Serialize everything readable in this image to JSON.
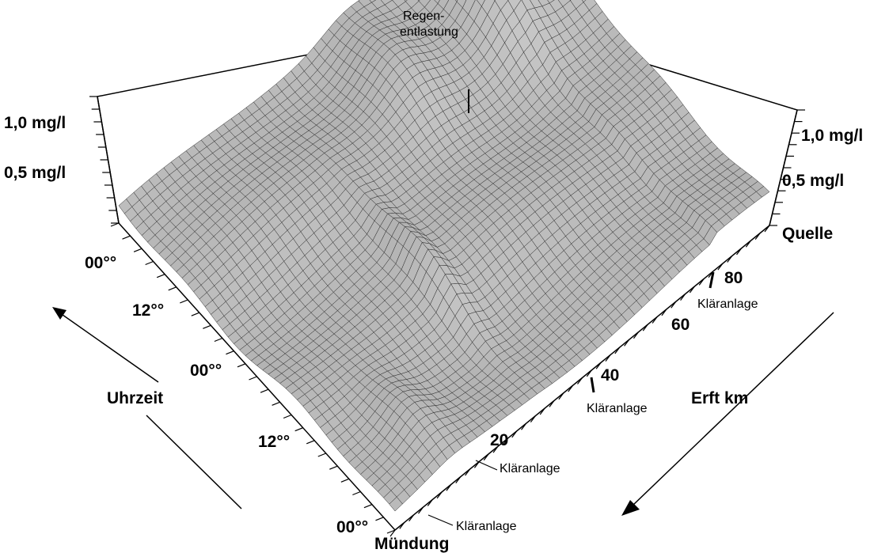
{
  "chart_data": {
    "type": "surface",
    "title": "",
    "z_axis": {
      "tick_labels": [
        "1,0 mg/l",
        "0,5 mg/l"
      ],
      "range": [
        0,
        1.0
      ]
    },
    "time_axis": {
      "label": "Uhrzeit",
      "tick_labels": [
        "00°°",
        "12°°",
        "00°°",
        "12°°",
        "00°°"
      ],
      "hours": [
        48,
        36,
        24,
        12,
        0
      ]
    },
    "km_axis": {
      "label": "Erft km",
      "start_label": "Mündung",
      "end_label": "Quelle",
      "tick_labels": [
        "20",
        "40",
        "60",
        "80"
      ],
      "ticks_km": [
        20,
        40,
        60,
        80
      ],
      "range": [
        0,
        100
      ]
    },
    "annotations": [
      {
        "text": "Kläranlage",
        "km": 7
      },
      {
        "text": "Kläranlage",
        "km": 14
      },
      {
        "text": "Kläranlage",
        "km": 37
      },
      {
        "text": "Kläranlage",
        "km": 82
      }
    ],
    "regen_annotation": {
      "line1": "Regen-",
      "line2": "entlastung"
    },
    "features": [
      {
        "description_free": true,
        "km": 82,
        "hour": 47,
        "height": 0.55,
        "width_km": 2.5,
        "width_h": 4
      },
      {
        "km": 84,
        "hour": 40,
        "height": 0.25,
        "width_km": 6,
        "width_h": 10
      },
      {
        "km": 60,
        "hour": 40,
        "height": 0.22,
        "width_km": 8,
        "width_h": 8
      },
      {
        "km": 38,
        "hour": 20,
        "height": 0.18,
        "width_km": 3,
        "width_h": 10
      },
      {
        "km": 15,
        "hour": 8,
        "height": 0.15,
        "width_km": 6,
        "width_h": 6
      }
    ],
    "grid": true
  }
}
